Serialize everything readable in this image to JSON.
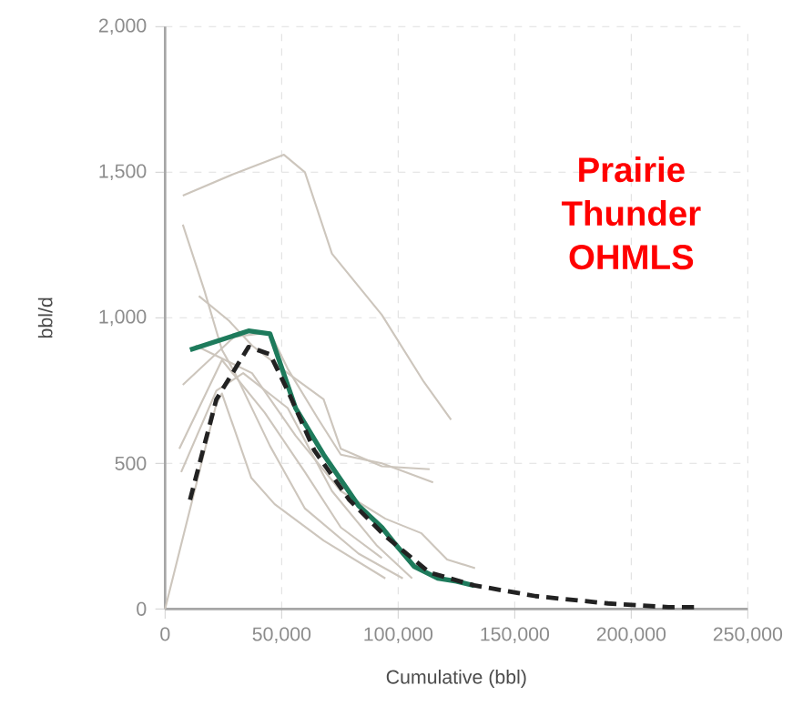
{
  "chart_data": {
    "type": "line",
    "xlabel": "Cumulative (bbl)",
    "ylabel": "bbl/d",
    "xlim": [
      0,
      250000
    ],
    "ylim": [
      0,
      2000
    ],
    "xticks": [
      {
        "value": 0,
        "label": "0"
      },
      {
        "value": 50000,
        "label": "50,000"
      },
      {
        "value": 100000,
        "label": "100,000"
      },
      {
        "value": 150000,
        "label": "150,000"
      },
      {
        "value": 200000,
        "label": "200,000"
      },
      {
        "value": 250000,
        "label": "250,000"
      }
    ],
    "yticks": [
      {
        "value": 0,
        "label": "0"
      },
      {
        "value": 500,
        "label": "500"
      },
      {
        "value": 1000,
        "label": "1,000"
      },
      {
        "value": 1500,
        "label": "1,500"
      },
      {
        "value": 2000,
        "label": "2,000"
      }
    ],
    "grid": true,
    "marker": "none",
    "annotations": [
      "Prairie Thunder OHMLS"
    ],
    "series": [
      {
        "color": "#cdc6bd",
        "line_style": "solid",
        "x": [
          7600,
          29700,
          51000,
          60000,
          71600,
          93000,
          111000,
          122700
        ],
        "values": [
          1420,
          1495,
          1560,
          1500,
          1220,
          1010,
          780,
          650
        ]
      },
      {
        "color": "#cdc6bd",
        "line_style": "solid",
        "x": [
          7600,
          16800,
          24400,
          30000,
          45000,
          60000,
          83000,
          102000
        ],
        "values": [
          1320,
          1095,
          890,
          810,
          560,
          345,
          190,
          105
        ]
      },
      {
        "color": "#cdc6bd",
        "line_style": "solid",
        "x": [
          0,
          22000,
          24400,
          37000,
          47000,
          68000,
          94500
        ],
        "values": [
          0,
          705,
          740,
          450,
          360,
          235,
          105
        ]
      },
      {
        "color": "#cdc6bd",
        "line_style": "solid",
        "x": [
          6100,
          24400,
          42700,
          60000,
          75400,
          93000
        ],
        "values": [
          550,
          855,
          675,
          470,
          280,
          175
        ]
      },
      {
        "color": "#cdc6bd",
        "line_style": "solid",
        "x": [
          7600,
          29700,
          45000,
          52600,
          65500,
          75400,
          93000,
          115000
        ],
        "values": [
          770,
          935,
          950,
          825,
          655,
          530,
          500,
          435
        ]
      },
      {
        "color": "#cdc6bd",
        "line_style": "solid",
        "x": [
          14500,
          27400,
          37300,
          52600,
          68000,
          75400,
          93000,
          113500
        ],
        "values": [
          1075,
          990,
          905,
          810,
          720,
          550,
          490,
          480
        ]
      },
      {
        "color": "#cdc6bd",
        "line_style": "solid",
        "x": [
          13000,
          37300,
          56000,
          75400,
          94500,
          110000,
          121000,
          133000
        ],
        "values": [
          905,
          810,
          595,
          405,
          310,
          260,
          170,
          140
        ]
      },
      {
        "color": "#cdc6bd",
        "line_style": "solid",
        "x": [
          6900,
          22000,
          33500,
          52600,
          71600,
          90600,
          106000
        ],
        "values": [
          470,
          750,
          810,
          690,
          405,
          220,
          105
        ]
      },
      {
        "color": "#1e7b5c",
        "line_style": "solid",
        "x": [
          10700,
          35800,
          45000,
          56000,
          68000,
          83000,
          93000,
          98000,
          107000,
          117000,
          125000,
          132600
        ],
        "values": [
          890,
          955,
          945,
          690,
          530,
          355,
          280,
          230,
          145,
          105,
          95,
          80
        ]
      },
      {
        "color": "#222222",
        "line_style": "dashed",
        "x": [
          10700,
          22000,
          35800,
          45000,
          52600,
          64000,
          79000,
          94500,
          113500,
          132600,
          159000,
          190000,
          216000,
          228000
        ],
        "values": [
          375,
          720,
          900,
          875,
          750,
          545,
          375,
          250,
          125,
          81,
          44,
          19,
          6,
          6
        ]
      }
    ]
  }
}
